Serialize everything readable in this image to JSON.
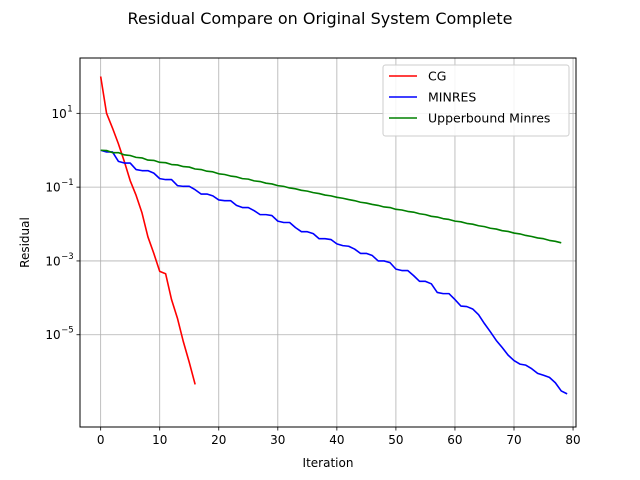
{
  "chart_data": {
    "type": "line",
    "title": "Residual Compare on Original System Complete",
    "xlabel": "Iteration",
    "ylabel": "Residual",
    "yscale": "log",
    "xlim": [
      -3.5,
      80.5
    ],
    "ylim": [
      3.16e-08,
      316
    ],
    "grid": true,
    "legend_position": "top-right",
    "x_ticks": [
      {
        "value": 0,
        "label": "0"
      },
      {
        "value": 10,
        "label": "10"
      },
      {
        "value": 20,
        "label": "20"
      },
      {
        "value": 30,
        "label": "30"
      },
      {
        "value": 40,
        "label": "40"
      },
      {
        "value": 50,
        "label": "50"
      },
      {
        "value": 60,
        "label": "60"
      },
      {
        "value": 70,
        "label": "70"
      },
      {
        "value": 80,
        "label": "80"
      }
    ],
    "y_ticks": [
      {
        "value": 1e-05,
        "base": "10",
        "exp": "−5"
      },
      {
        "value": 0.001,
        "base": "10",
        "exp": "−3"
      },
      {
        "value": 0.1,
        "base": "10",
        "exp": "−1"
      },
      {
        "value": 10,
        "base": "10",
        "exp": "1"
      }
    ],
    "series": [
      {
        "name": "CG",
        "color": "#ff0000",
        "x": [
          0,
          1,
          2,
          3,
          4,
          5,
          6,
          7,
          8,
          9,
          10,
          11,
          12,
          13,
          14,
          15,
          16
        ],
        "y": [
          100,
          10,
          4,
          1.5,
          0.5,
          0.15,
          0.06,
          0.02,
          0.0045,
          0.0016,
          0.00052,
          0.00045,
          9e-05,
          2.8e-05,
          6.5e-06,
          1.8e-06,
          4.5e-07
        ]
      },
      {
        "name": "MINRES",
        "color": "#0000ff",
        "x": [
          0,
          1,
          2,
          3,
          4,
          5,
          6,
          7,
          8,
          9,
          10,
          11,
          12,
          13,
          14,
          15,
          16,
          17,
          18,
          19,
          20,
          21,
          22,
          23,
          24,
          25,
          26,
          27,
          28,
          29,
          30,
          31,
          32,
          33,
          34,
          35,
          36,
          37,
          38,
          39,
          40,
          41,
          42,
          43,
          44,
          45,
          46,
          47,
          48,
          49,
          50,
          51,
          52,
          53,
          54,
          55,
          56,
          57,
          58,
          59,
          60,
          61,
          62,
          63,
          64,
          65,
          66,
          67,
          68,
          69,
          70,
          71,
          72,
          73,
          74,
          75,
          76,
          77,
          78,
          79
        ],
        "y": [
          1.0,
          0.9,
          0.9,
          0.5,
          0.45,
          0.45,
          0.3,
          0.28,
          0.28,
          0.24,
          0.17,
          0.16,
          0.16,
          0.11,
          0.105,
          0.105,
          0.085,
          0.065,
          0.065,
          0.058,
          0.045,
          0.043,
          0.043,
          0.032,
          0.028,
          0.028,
          0.023,
          0.018,
          0.018,
          0.017,
          0.012,
          0.011,
          0.011,
          0.008,
          0.0062,
          0.0062,
          0.0055,
          0.004,
          0.004,
          0.0038,
          0.0029,
          0.0026,
          0.0025,
          0.0021,
          0.0016,
          0.0016,
          0.0014,
          0.001,
          0.001,
          0.0009,
          0.0006,
          0.00055,
          0.00055,
          0.0004,
          0.00028,
          0.00028,
          0.00024,
          0.00014,
          0.00013,
          0.00013,
          9e-05,
          6e-05,
          5.8e-05,
          5e-05,
          3.5e-05,
          2e-05,
          1.2e-05,
          7e-06,
          4.5e-06,
          2.8e-06,
          2e-06,
          1.6e-06,
          1.5e-06,
          1.2e-06,
          9e-07,
          8e-07,
          7e-07,
          5e-07,
          3e-07,
          2.5e-07
        ]
      },
      {
        "name": "Upperbound Minres",
        "color": "#008000",
        "x": [
          0,
          1,
          2,
          3,
          4,
          5,
          6,
          7,
          8,
          9,
          10,
          11,
          12,
          13,
          14,
          15,
          16,
          17,
          18,
          19,
          20,
          21,
          22,
          23,
          24,
          25,
          26,
          27,
          28,
          29,
          30,
          31,
          32,
          33,
          34,
          35,
          36,
          37,
          38,
          39,
          40,
          41,
          42,
          43,
          44,
          45,
          46,
          47,
          48,
          49,
          50,
          51,
          52,
          53,
          54,
          55,
          56,
          57,
          58,
          59,
          60,
          61,
          62,
          63,
          64,
          65,
          66,
          67,
          68,
          69,
          70,
          71,
          72,
          73,
          74,
          75,
          76,
          77,
          78
        ],
        "y": [
          1.0,
          0.98,
          0.86,
          0.86,
          0.75,
          0.72,
          0.64,
          0.62,
          0.54,
          0.53,
          0.47,
          0.46,
          0.41,
          0.4,
          0.36,
          0.35,
          0.31,
          0.3,
          0.27,
          0.26,
          0.23,
          0.22,
          0.2,
          0.19,
          0.17,
          0.165,
          0.148,
          0.142,
          0.128,
          0.122,
          0.11,
          0.105,
          0.095,
          0.09,
          0.082,
          0.078,
          0.071,
          0.067,
          0.061,
          0.058,
          0.053,
          0.05,
          0.046,
          0.043,
          0.039,
          0.037,
          0.034,
          0.032,
          0.029,
          0.028,
          0.025,
          0.024,
          0.022,
          0.021,
          0.019,
          0.018,
          0.0162,
          0.0155,
          0.014,
          0.0133,
          0.012,
          0.0115,
          0.0104,
          0.0099,
          0.009,
          0.0085,
          0.0077,
          0.0073,
          0.0066,
          0.0063,
          0.0057,
          0.0054,
          0.0049,
          0.0046,
          0.0042,
          0.004,
          0.0036,
          0.0034,
          0.0031
        ]
      }
    ]
  }
}
